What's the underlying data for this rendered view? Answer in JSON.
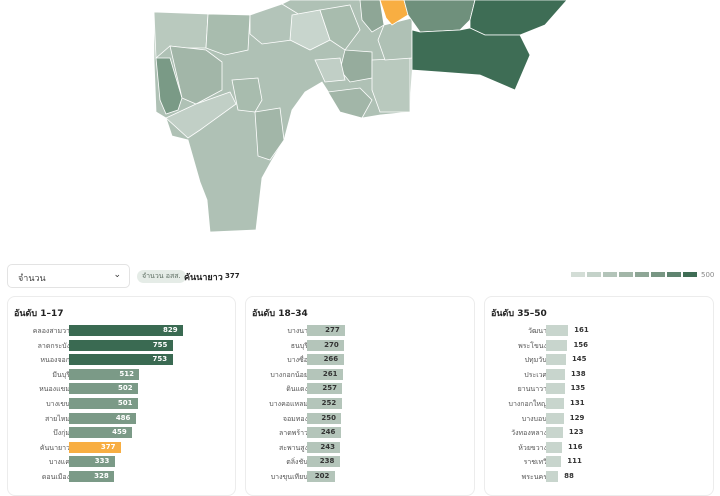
{
  "controls": {
    "metric_select": "จำนวน",
    "pill": "จำนวน อสส.",
    "selected_name": "คันนายาว",
    "selected_value": "377"
  },
  "legend": {
    "max": "500",
    "colors": [
      "#d3ddd6",
      "#c4d2c9",
      "#b3c4b9",
      "#a2b6a8",
      "#8ea696",
      "#789683",
      "#5f8470",
      "#3f6d55"
    ]
  },
  "colors": {
    "dark": "#3a6a52",
    "mid": "#7b9a87",
    "light": "#b4c5ba",
    "lighter": "#c8d5cd",
    "highlight": "#f8ae42"
  },
  "panels": [
    {
      "title": "อันดับ 1–17",
      "items": [
        {
          "name": "คลองสามวา",
          "value": 829,
          "tone": "dark"
        },
        {
          "name": "ลาดกระบัง",
          "value": 755,
          "tone": "dark"
        },
        {
          "name": "หนองจอก",
          "value": 753,
          "tone": "dark"
        },
        {
          "name": "มีนบุรี",
          "value": 512,
          "tone": "mid"
        },
        {
          "name": "หนองแขม",
          "value": 502,
          "tone": "mid"
        },
        {
          "name": "บางเขน",
          "value": 501,
          "tone": "mid"
        },
        {
          "name": "สายไหม",
          "value": 486,
          "tone": "mid"
        },
        {
          "name": "บึงกุ่ม",
          "value": 459,
          "tone": "mid"
        },
        {
          "name": "คันนายาว",
          "value": 377,
          "tone": "highlight"
        },
        {
          "name": "บางแค",
          "value": 333,
          "tone": "mid"
        },
        {
          "name": "ดอนเมือง",
          "value": 328,
          "tone": "mid"
        }
      ]
    },
    {
      "title": "อันดับ 18–34",
      "items": [
        {
          "name": "บางนา",
          "value": 277
        },
        {
          "name": "ธนบุรี",
          "value": 270
        },
        {
          "name": "บางซื่อ",
          "value": 266
        },
        {
          "name": "บางกอกน้อย",
          "value": 261
        },
        {
          "name": "ดินแดง",
          "value": 257
        },
        {
          "name": "บางคอแหลม",
          "value": 252
        },
        {
          "name": "จอมทอง",
          "value": 250
        },
        {
          "name": "ลาดพร้าว",
          "value": 246
        },
        {
          "name": "สะพานสูง",
          "value": 243
        },
        {
          "name": "ตลิ่งชัน",
          "value": 238
        },
        {
          "name": "บางขุนเทียน",
          "value": 202
        }
      ]
    },
    {
      "title": "อันดับ 35–50",
      "items": [
        {
          "name": "วัฒนา",
          "value": 161
        },
        {
          "name": "พระโขนง",
          "value": 156
        },
        {
          "name": "ปทุมวัน",
          "value": 145
        },
        {
          "name": "ประเวศ",
          "value": 138
        },
        {
          "name": "ยานนาวา",
          "value": 135
        },
        {
          "name": "บางกอกใหญ่",
          "value": 131
        },
        {
          "name": "บางบอน",
          "value": 129
        },
        {
          "name": "วังทองหลาง",
          "value": 123
        },
        {
          "name": "ห้วยขวาง",
          "value": 116
        },
        {
          "name": "ราชเทวี",
          "value": 111
        },
        {
          "name": "พระนคร",
          "value": 88
        }
      ]
    }
  ]
}
